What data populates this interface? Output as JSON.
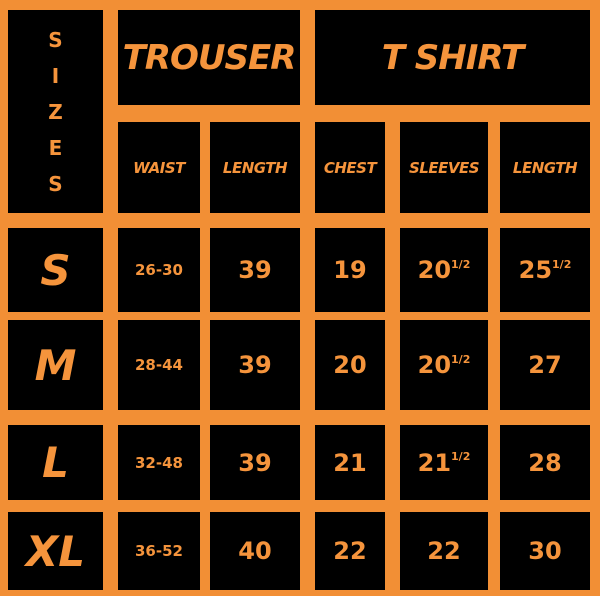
{
  "header": {
    "sizes_label": "SIZES",
    "groups": [
      "TROUSER",
      "T SHIRT"
    ],
    "columns": [
      "WAIST",
      "LENGTH",
      "CHEST",
      "SLEEVES",
      "LENGTH"
    ]
  },
  "table": {
    "rows": [
      [
        "S",
        "26-30",
        "39",
        "19",
        {
          "text": "20",
          "fraction": "1/2"
        },
        {
          "text": "25",
          "fraction": "1/2"
        }
      ],
      [
        "M",
        "28-44",
        "39",
        "20",
        {
          "text": "20",
          "fraction": "1/2"
        },
        "27"
      ],
      [
        "L",
        "32-48",
        "39",
        "21",
        {
          "text": "21",
          "fraction": "1/2"
        },
        "28"
      ],
      [
        "XL",
        "36-52",
        "40",
        "22",
        "22",
        "30"
      ]
    ]
  }
}
